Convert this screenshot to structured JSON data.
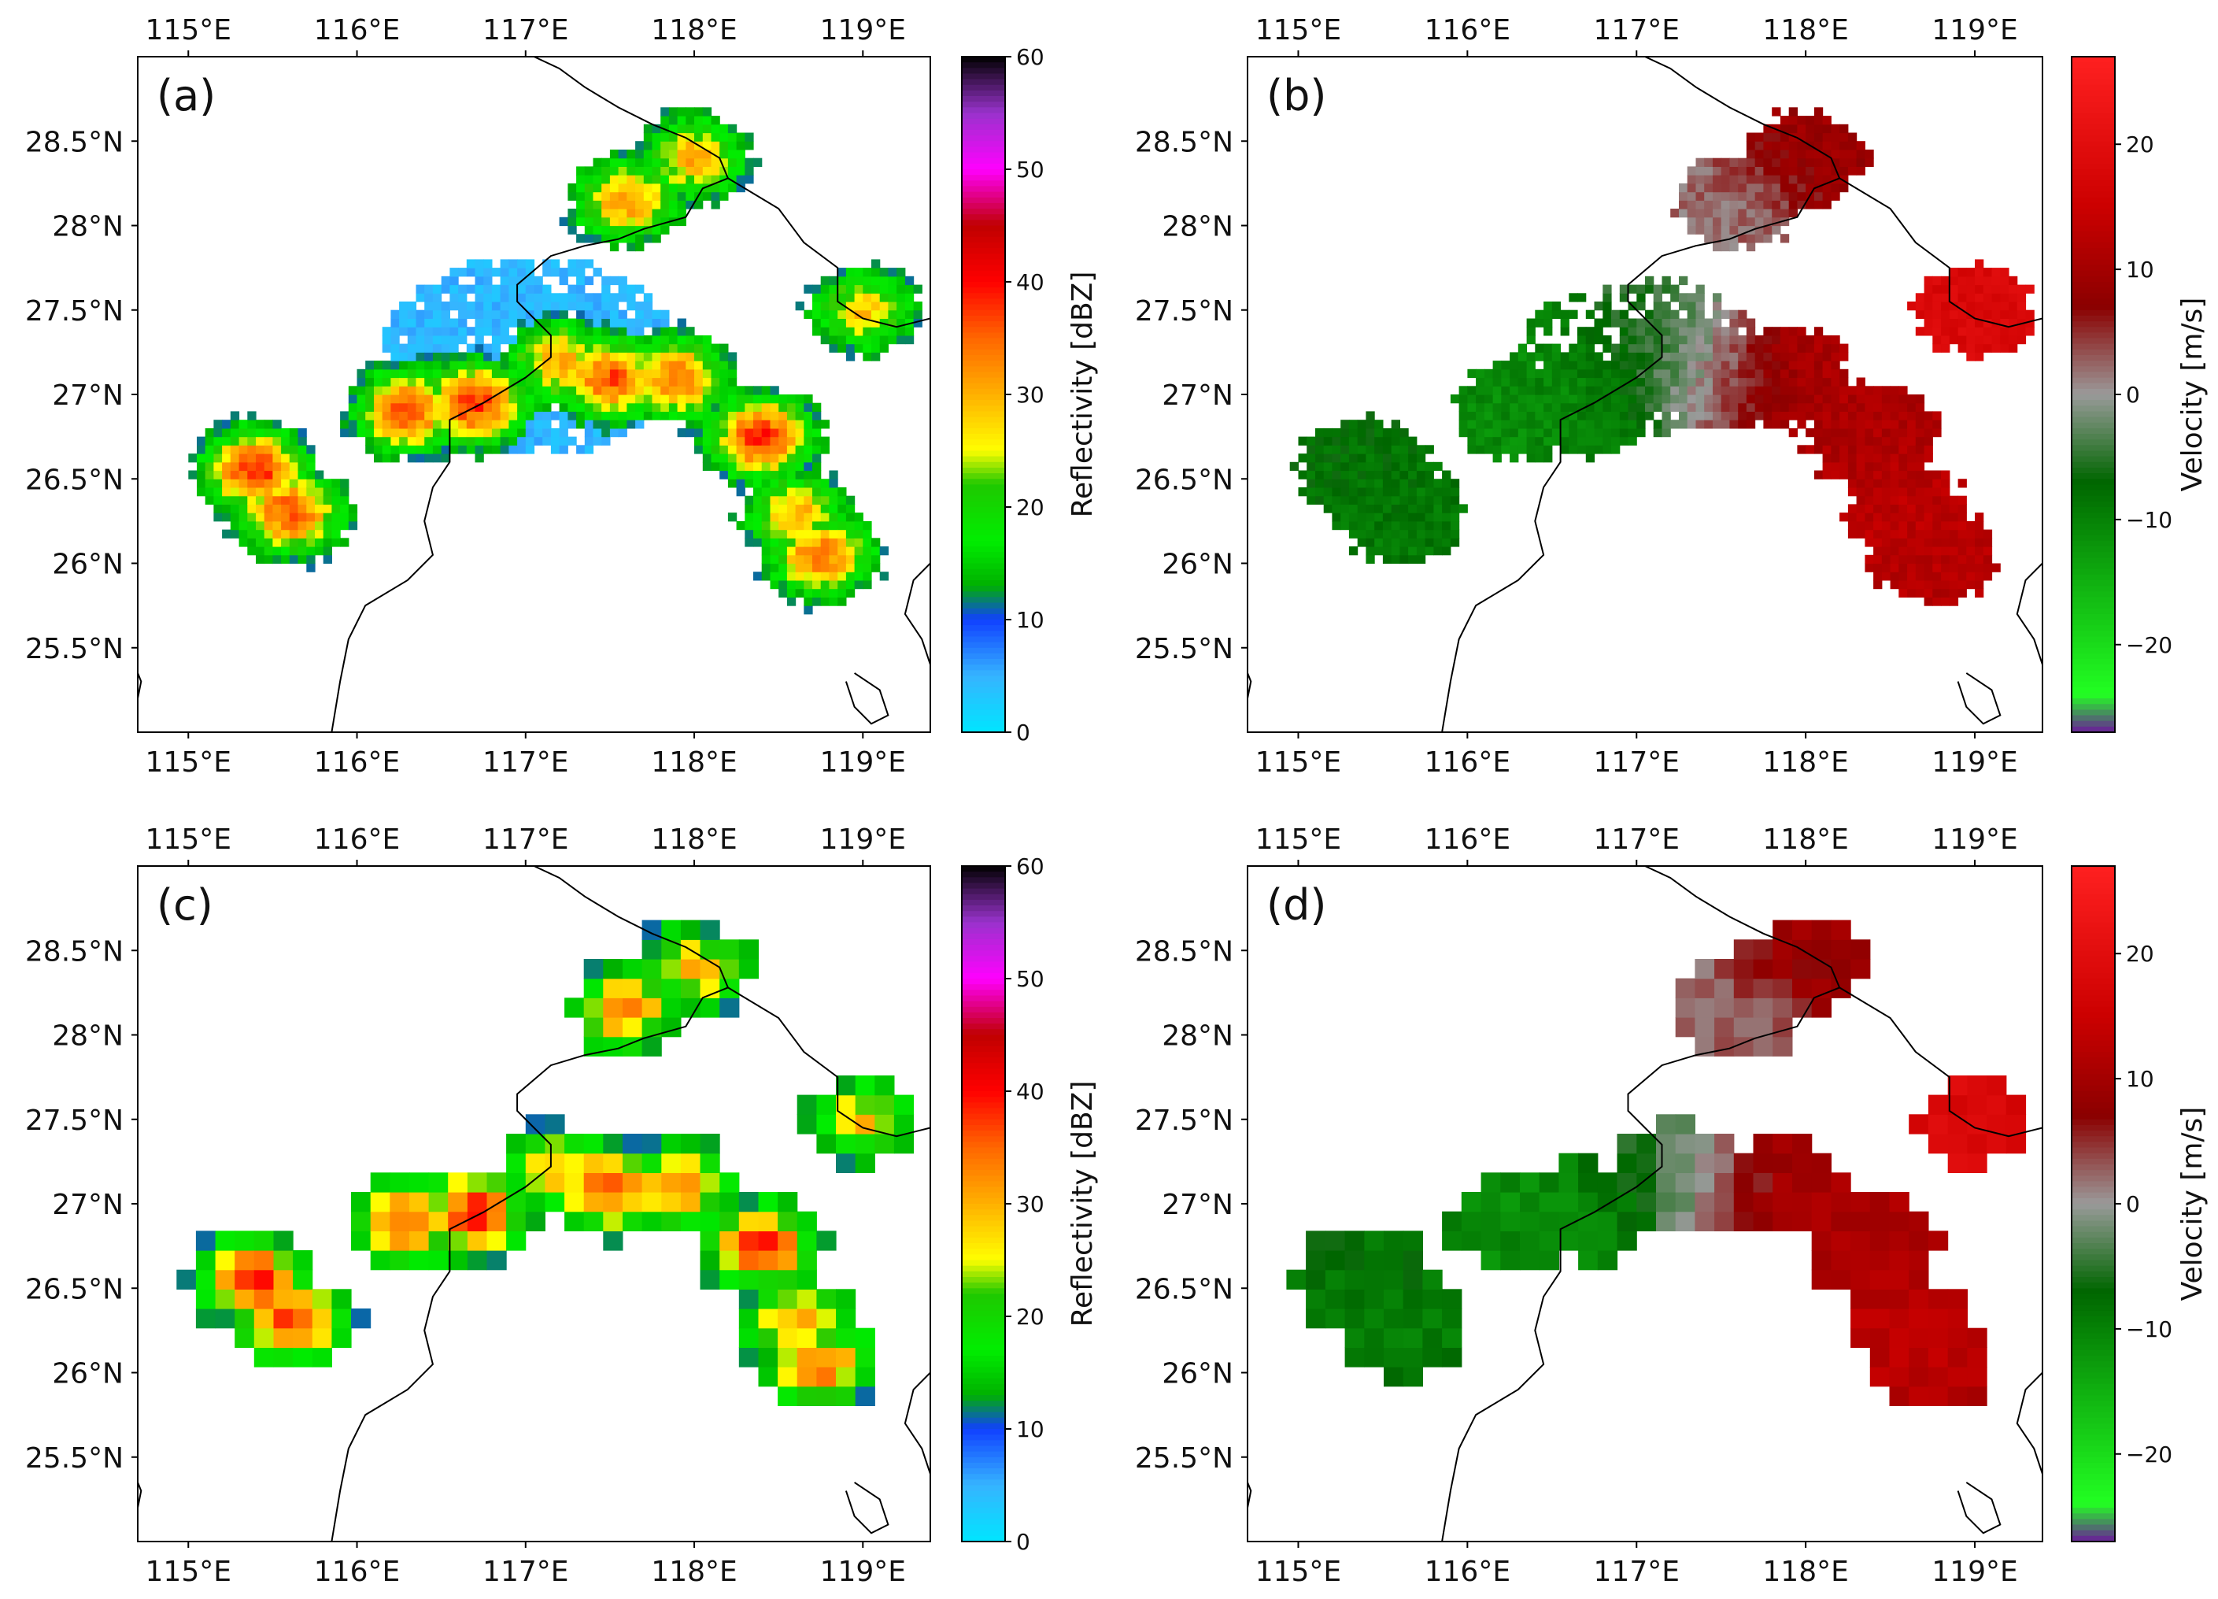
{
  "panels": [
    {
      "id": "a",
      "label": "(a)",
      "variable": "reflectivity",
      "render": "smooth",
      "colorbar": {
        "label": "Reflectivity [dBZ]",
        "ticks": [
          "60",
          "50",
          "40",
          "30",
          "20",
          "10",
          "0"
        ],
        "values": [
          60,
          50,
          40,
          30,
          20,
          10,
          0
        ],
        "min": 0,
        "max": 60
      }
    },
    {
      "id": "b",
      "label": "(b)",
      "variable": "velocity",
      "render": "smooth",
      "colorbar": {
        "label": "Velocity [m/s]",
        "ticks": [
          "20",
          "10",
          "0",
          "−10",
          "−20"
        ],
        "values": [
          20,
          10,
          0,
          -10,
          -20
        ],
        "min": -27,
        "max": 27
      }
    },
    {
      "id": "c",
      "label": "(c)",
      "variable": "reflectivity",
      "render": "grid",
      "colorbar": {
        "label": "Reflectivity [dBZ]",
        "ticks": [
          "60",
          "50",
          "40",
          "30",
          "20",
          "10",
          "0"
        ],
        "values": [
          60,
          50,
          40,
          30,
          20,
          10,
          0
        ],
        "min": 0,
        "max": 60
      }
    },
    {
      "id": "d",
      "label": "(d)",
      "variable": "velocity",
      "render": "grid",
      "colorbar": {
        "label": "Velocity [m/s]",
        "ticks": [
          "20",
          "10",
          "0",
          "−10",
          "−20"
        ],
        "values": [
          20,
          10,
          0,
          -10,
          -20
        ],
        "min": -27,
        "max": 27
      }
    }
  ],
  "axes": {
    "lon_range": [
      114.7,
      119.4
    ],
    "lat_range": [
      25.0,
      29.0
    ],
    "lon_ticks": [
      115,
      116,
      117,
      118,
      119
    ],
    "lon_tick_labels": [
      "115°E",
      "116°E",
      "117°E",
      "118°E",
      "119°E"
    ],
    "lat_ticks": [
      25.5,
      26,
      26.5,
      27,
      27.5,
      28,
      28.5
    ],
    "lat_tick_labels": [
      "25.5°N",
      "26°N",
      "26.5°N",
      "27°N",
      "27.5°N",
      "28°N",
      "28.5°N"
    ],
    "lon_labels_top": true,
    "lon_labels_bottom": true,
    "lat_labels_left": true
  },
  "colormaps": {
    "reflectivity": [
      [
        0,
        "#00e5ff"
      ],
      [
        5,
        "#36b4ff"
      ],
      [
        10,
        "#1040ff"
      ],
      [
        13,
        "#00b000"
      ],
      [
        17,
        "#00ee00"
      ],
      [
        22,
        "#1ec800"
      ],
      [
        25,
        "#ffff00"
      ],
      [
        30,
        "#ffb000"
      ],
      [
        35,
        "#ff6600"
      ],
      [
        40,
        "#ff0000"
      ],
      [
        45,
        "#c00000"
      ],
      [
        50,
        "#ff00ff"
      ],
      [
        55,
        "#9933cc"
      ],
      [
        60,
        "#000000"
      ]
    ],
    "velocity": [
      [
        -27,
        "#6a1b9a"
      ],
      [
        -24,
        "#22ff22"
      ],
      [
        -15,
        "#10b010"
      ],
      [
        -7,
        "#006600"
      ],
      [
        0,
        "#9a9a9a"
      ],
      [
        7,
        "#8b0000"
      ],
      [
        15,
        "#cc0000"
      ],
      [
        27,
        "#ff2020"
      ]
    ]
  },
  "echo_cores": [
    {
      "lon": 115.4,
      "lat": 26.55,
      "dbz": 38,
      "vel": -8
    },
    {
      "lon": 115.6,
      "lat": 26.3,
      "dbz": 36,
      "vel": -9
    },
    {
      "lon": 116.3,
      "lat": 26.9,
      "dbz": 36,
      "vel": -11
    },
    {
      "lon": 116.7,
      "lat": 26.95,
      "dbz": 38,
      "vel": -10
    },
    {
      "lon": 117.2,
      "lat": 27.2,
      "dbz": 30,
      "vel": -6
    },
    {
      "lon": 117.5,
      "lat": 27.1,
      "dbz": 36,
      "vel": 4
    },
    {
      "lon": 117.9,
      "lat": 27.1,
      "dbz": 34,
      "vel": 11
    },
    {
      "lon": 117.6,
      "lat": 28.15,
      "dbz": 32,
      "vel": 2
    },
    {
      "lon": 118.0,
      "lat": 28.4,
      "dbz": 30,
      "vel": 9
    },
    {
      "lon": 118.4,
      "lat": 26.75,
      "dbz": 38,
      "vel": 11
    },
    {
      "lon": 118.6,
      "lat": 26.3,
      "dbz": 30,
      "vel": 13
    },
    {
      "lon": 118.75,
      "lat": 26.05,
      "dbz": 34,
      "vel": 12
    },
    {
      "lon": 119.0,
      "lat": 27.5,
      "dbz": 28,
      "vel": 18
    }
  ]
}
